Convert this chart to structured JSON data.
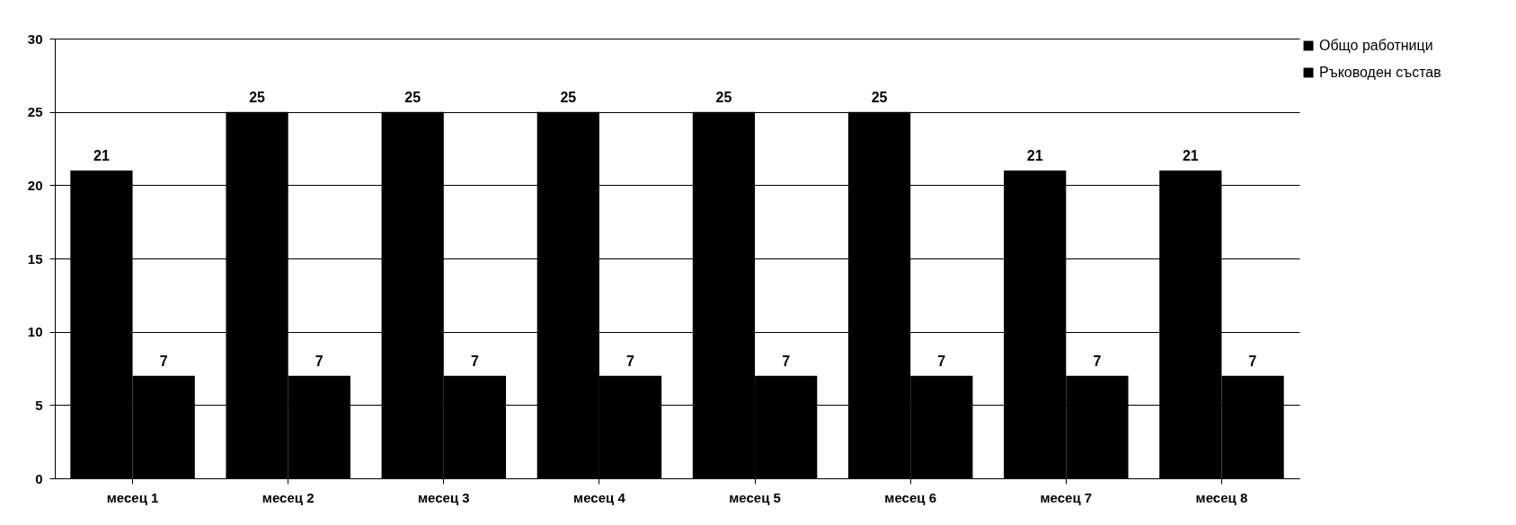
{
  "chart_data": {
    "type": "bar",
    "categories": [
      "месец 1",
      "месец 2",
      "месец 3",
      "месец 4",
      "месец 5",
      "месец 6",
      "месец 7",
      "месец 8"
    ],
    "series": [
      {
        "name": "Общо работници",
        "color": "#000000",
        "values": [
          21,
          25,
          25,
          25,
          25,
          25,
          21,
          21
        ]
      },
      {
        "name": "Ръководен състав",
        "color": "#000000",
        "values": [
          7,
          7,
          7,
          7,
          7,
          7,
          7,
          7
        ]
      }
    ],
    "ylim": [
      0,
      30
    ],
    "yticks": [
      0,
      5,
      10,
      15,
      20,
      25,
      30
    ],
    "grid": "y",
    "legend": "right",
    "data_labels": true
  }
}
